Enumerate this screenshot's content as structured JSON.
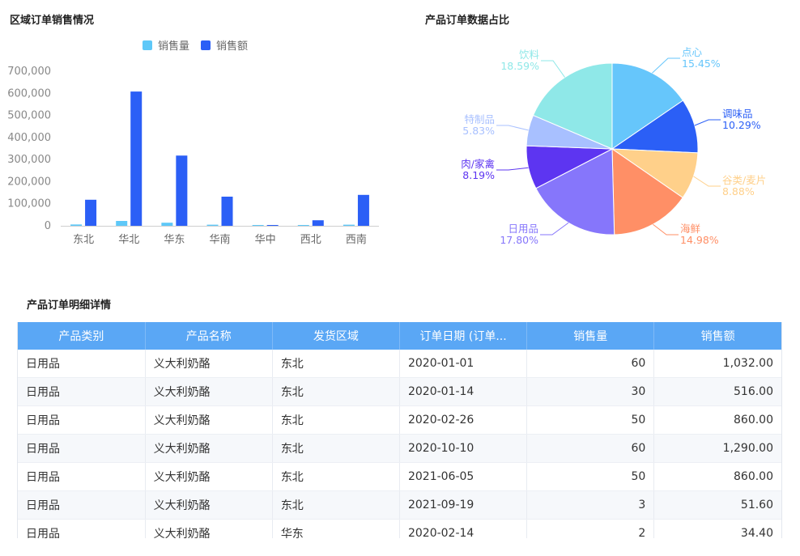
{
  "bar_section": {
    "title": "区域订单销售情况"
  },
  "pie_section": {
    "title": "产品订单数据占比"
  },
  "table_section": {
    "title": "产品订单明细详情",
    "columns": [
      "产品类别",
      "产品名称",
      "发货区域",
      "订单日期 (订单...",
      "销售量",
      "销售额"
    ],
    "rows": [
      [
        "日用品",
        "义大利奶酪",
        "东北",
        "2020-01-01",
        "60",
        "1,032.00"
      ],
      [
        "日用品",
        "义大利奶酪",
        "东北",
        "2020-01-14",
        "30",
        "516.00"
      ],
      [
        "日用品",
        "义大利奶酪",
        "东北",
        "2020-02-26",
        "50",
        "860.00"
      ],
      [
        "日用品",
        "义大利奶酪",
        "东北",
        "2020-10-10",
        "60",
        "1,290.00"
      ],
      [
        "日用品",
        "义大利奶酪",
        "东北",
        "2021-06-05",
        "50",
        "860.00"
      ],
      [
        "日用品",
        "义大利奶酪",
        "东北",
        "2021-09-19",
        "3",
        "51.60"
      ],
      [
        "日用品",
        "义大利奶酪",
        "华东",
        "2020-02-14",
        "2",
        "34.40"
      ]
    ]
  },
  "chart_data": [
    {
      "type": "bar",
      "title": "区域订单销售情况",
      "categories": [
        "东北",
        "华北",
        "华东",
        "华南",
        "华中",
        "西北",
        "西南"
      ],
      "series": [
        {
          "name": "销售量",
          "color": "#5ec8f8",
          "values": [
            6000,
            22000,
            14000,
            5000,
            2000,
            1500,
            5000
          ]
        },
        {
          "name": "销售额",
          "color": "#2b5ff6",
          "values": [
            118000,
            608000,
            318000,
            132000,
            2000,
            25000,
            140000
          ]
        }
      ],
      "yticks": [
        "0",
        "100,000",
        "200,000",
        "300,000",
        "400,000",
        "500,000",
        "600,000",
        "700,000"
      ],
      "ylim": [
        0,
        700000
      ],
      "legend": "top-center",
      "grid": false
    },
    {
      "type": "pie",
      "title": "产品订单数据占比",
      "slices": [
        {
          "label": "点心",
          "percent_text": "15.45%",
          "value": 15.45,
          "color": "#66c6fb"
        },
        {
          "label": "调味品",
          "percent_text": "10.29%",
          "value": 10.29,
          "color": "#2b5ff6"
        },
        {
          "label": "谷类/麦片",
          "percent_text": "8.88%",
          "value": 8.88,
          "color": "#ffd08a"
        },
        {
          "label": "海鲜",
          "percent_text": "14.98%",
          "value": 14.98,
          "color": "#ff8f66"
        },
        {
          "label": "日用品",
          "percent_text": "17.80%",
          "value": 17.8,
          "color": "#8676fb"
        },
        {
          "label": "肉/家禽",
          "percent_text": "8.19%",
          "value": 8.19,
          "color": "#5d35f1"
        },
        {
          "label": "特制品",
          "percent_text": "5.83%",
          "value": 5.83,
          "color": "#a8c0ff"
        },
        {
          "label": "饮料",
          "percent_text": "18.59%",
          "value": 18.59,
          "color": "#8fe8e8"
        }
      ]
    }
  ]
}
